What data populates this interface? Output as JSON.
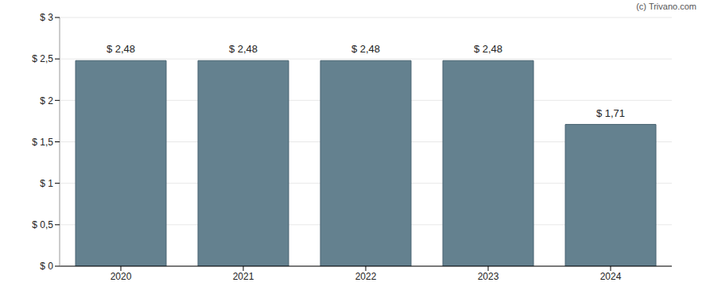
{
  "chart_data": {
    "type": "bar",
    "annotation": "(c) Trivano.com",
    "categories": [
      "2020",
      "2021",
      "2022",
      "2023",
      "2024"
    ],
    "values": [
      2.48,
      2.48,
      2.48,
      2.48,
      1.71
    ],
    "value_labels": [
      "$ 2,48",
      "$ 2,48",
      "$ 2,48",
      "$ 2,48",
      "$ 1,71"
    ],
    "data_labels": true,
    "color": "#64818f",
    "ylim": [
      0,
      3
    ],
    "yticks": [
      {
        "value": 0,
        "label": "$ 0"
      },
      {
        "value": 0.5,
        "label": "$ 0,5"
      },
      {
        "value": 1,
        "label": "$ 1"
      },
      {
        "value": 1.5,
        "label": "$ 1,5"
      },
      {
        "value": 2,
        "label": "$ 2"
      },
      {
        "value": 2.5,
        "label": "$ 2,5"
      },
      {
        "value": 3,
        "label": "$ 3"
      }
    ],
    "grid": true
  }
}
